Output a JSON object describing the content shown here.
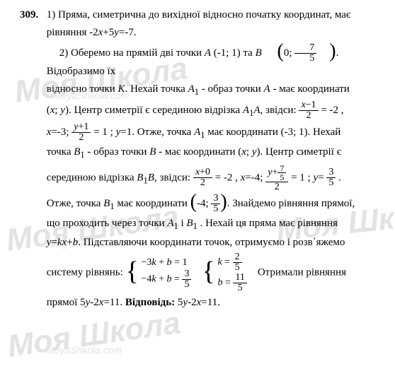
{
  "problem_number": "309.",
  "part1": {
    "line1": "1) Пряма, симетрична до вихідної відносно початку координат, має",
    "line2_prefix": "рівняння -2",
    "line2_mid": "+5",
    "line2_suffix": "=-7.",
    "x": "x",
    "y": "y"
  },
  "part2": {
    "l1_a": "2) Оберемо на прямій дві точки ",
    "A": "A",
    "Acoord": " (-1; 1) та ",
    "B": "B",
    "Bfrac_num": "7",
    "Bfrac_den": "5",
    "l1_b": ". Відобразимо їх",
    "l2_a": "відносно точки ",
    "K": "K",
    "l2_b": ". Нехай точка ",
    "A1": "A",
    "sub1": "1",
    "l2_c": " - образ точки ",
    "l2_d": " - має координати",
    "l3_a": "(",
    "x": "x",
    "l3_b": "; ",
    "y": "y",
    "l3_c": "). Центр симетрії є серединою відрізка ",
    "l3_d": ", звідси: ",
    "f1_num": "x−1",
    "f1_den": "2",
    "l3_e": " = -2 ,",
    "l4_a": "x",
    "l4_b": "=-3; ",
    "f2_num": "y+1",
    "f2_den": "2",
    "l4_c": " = 1 ; ",
    "l4_d": "y",
    "l4_e": "=1. Отже, точка ",
    "l4_f": " має координати (-3; 1). Нехай",
    "l5_a": "точка ",
    "B1": "B",
    "l5_b": " - образ точки ",
    "l5_c": " - має координати (",
    "l5_d": "). Центр симетрії є",
    "l6_a": "серединою відрізка ",
    "l6_b": ", звідси: ",
    "f3_num": "x+0",
    "f3_den": "2",
    "l6_c": " = -2 , ",
    "l6_d": "x",
    "l6_e": "=-4; ",
    "f4_num_top": "7",
    "f4_num_bot": "5",
    "f4_num_pref": "y+",
    "f4_den": "2",
    "l6_f": " = 1 ; ",
    "l6_g": "y",
    "l6_h": "= ",
    "f5_num": "3",
    "f5_den": "5",
    "l6_i": " .",
    "l7_a": "Отже, точка ",
    "l7_b": " має координати ",
    "f6_num": "3",
    "f6_den": "5",
    "l7_c": ". Знайдемо рівняння прямої,",
    "l8_a": "що проходить через точки ",
    "l8_b": " i ",
    "l8_c": " . Нехай ця пряма має рівняння",
    "l9_a": "y",
    "l9_b": "=",
    "l9_c": "kx",
    "l9_d": "+",
    "l9_e": "b",
    "l9_f": ". Підставляючи координати точок, отримуємо i розв᾿яжемо",
    "l10_a": "систему рівнянь: ",
    "sys1_r1_a": "−3",
    "sys1_r1_b": "k",
    "sys1_r1_c": " + ",
    "sys1_r1_d": "b",
    "sys1_r1_e": " = 1",
    "sys1_r2_a": "−4",
    "sys1_r2_b": "k",
    "sys1_r2_c": " + ",
    "sys1_r2_d": "b",
    "sys1_r2_e": " = ",
    "sys1_r2_num": "3",
    "sys1_r2_den": "5",
    "sys2_r1_a": "k",
    "sys2_r1_b": " = ",
    "sys2_r1_num": "2",
    "sys2_r1_den": "5",
    "sys2_r2_a": "b",
    "sys2_r2_b": " = ",
    "sys2_r2_num": "11",
    "sys2_r2_den": "5",
    "l10_b": "Отримали рівняння",
    "l11_a": "прямої 5",
    "l11_b": "y",
    "l11_c": "-2",
    "l11_d": "x",
    "l11_e": "=11.  ",
    "answer_label": "Відповідь:",
    "l11_f": " 5",
    "l11_g": "y",
    "l11_h": "-2",
    "l11_i": "x",
    "l11_j": "=11."
  },
  "watermark_big": "Моя Школа",
  "watermark_small": "MoyaShkola.com"
}
